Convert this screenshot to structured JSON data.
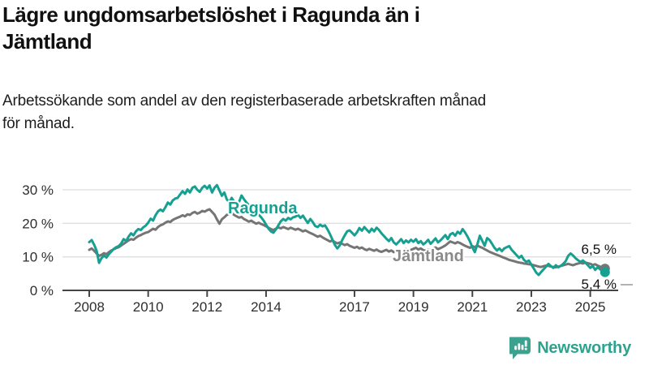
{
  "header": {
    "title_lines": [
      "Lägre ungdomsarbetslöshet i Ragunda än i",
      "Jämtland"
    ],
    "subtitle_lines": [
      "Arbetssökande som andel av den registerbaserade arbetskraften månad",
      "för månad."
    ]
  },
  "footer": {
    "brand": "Newsworthy",
    "logo_icon": "bar-chart-speech-bubble-icon",
    "brand_color": "#2EA28E"
  },
  "chart_data": {
    "type": "line",
    "unit": "%",
    "x_start_year": 2008,
    "x_end_year": 2025.5,
    "points_per_year": 12,
    "ylim": [
      0,
      33
    ],
    "y_ticks": [
      0,
      10,
      20,
      30
    ],
    "y_tick_labels": [
      "0 %",
      "10 %",
      "20 %",
      "30 %"
    ],
    "x_tick_years": [
      2008,
      2010,
      2012,
      2014,
      2017,
      2019,
      2021,
      2023,
      2025
    ],
    "x_tick_labels": [
      "2008",
      "2010",
      "2012",
      "2014",
      "2017",
      "2019",
      "2021",
      "2023",
      "2025"
    ],
    "grid": "horizontal",
    "legend": "inline-labels",
    "series": [
      {
        "name": "Jämtland",
        "color": "#757575",
        "label_color": "#8A8A8A",
        "end_value": 6.5,
        "end_label": "6,5 %",
        "values": [
          12.1,
          12.5,
          11.8,
          11.0,
          10.3,
          10.6,
          11.1,
          10.8,
          11.4,
          11.9,
          12.3,
          12.6,
          12.9,
          13.4,
          13.9,
          14.4,
          14.9,
          15.3,
          15.1,
          15.7,
          16.2,
          16.5,
          16.9,
          17.2,
          17.4,
          17.9,
          18.4,
          18.1,
          18.9,
          19.4,
          19.7,
          20.2,
          20.6,
          20.4,
          21.0,
          21.4,
          21.7,
          22.0,
          22.4,
          22.1,
          22.7,
          22.5,
          23.1,
          23.4,
          22.9,
          23.2,
          23.7,
          23.5,
          23.9,
          24.2,
          23.4,
          22.6,
          21.2,
          19.9,
          21.2,
          21.8,
          22.5,
          22.9,
          23.1,
          22.5,
          22.1,
          21.7,
          21.9,
          21.3,
          20.9,
          20.5,
          20.8,
          20.3,
          19.9,
          20.2,
          19.8,
          19.5,
          19.1,
          18.7,
          18.3,
          18.0,
          18.4,
          18.8,
          18.5,
          18.9,
          18.6,
          18.3,
          18.7,
          18.4,
          18.1,
          18.4,
          18.0,
          17.6,
          17.9,
          17.5,
          17.1,
          16.8,
          16.4,
          16.0,
          16.3,
          15.8,
          15.4,
          15.0,
          14.6,
          14.9,
          14.4,
          14.0,
          14.3,
          13.9,
          13.5,
          13.8,
          13.3,
          13.0,
          12.7,
          13.0,
          12.5,
          12.8,
          12.3,
          12.0,
          12.4,
          12.1,
          11.8,
          12.2,
          11.7,
          11.5,
          11.8,
          12.1,
          11.6,
          11.9,
          11.4,
          11.7,
          12.0,
          11.5,
          11.9,
          12.3,
          11.8,
          12.1,
          12.4,
          12.7,
          12.2,
          12.5,
          12.0,
          11.8,
          12.2,
          11.9,
          12.4,
          12.8,
          12.3,
          12.6,
          13.0,
          13.4,
          14.0,
          14.6,
          14.3,
          14.0,
          14.4,
          14.1,
          13.7,
          13.3,
          13.0,
          12.7,
          13.2,
          12.9,
          13.4,
          13.0,
          12.7,
          12.3,
          11.9,
          11.5,
          11.2,
          10.9,
          10.6,
          10.3,
          10.0,
          9.7,
          9.4,
          9.1,
          8.9,
          8.7,
          8.5,
          8.3,
          8.2,
          8.0,
          7.9,
          7.8,
          7.7,
          7.5,
          7.3,
          7.1,
          7.0,
          7.2,
          7.4,
          7.3,
          7.1,
          7.0,
          6.9,
          7.1,
          7.3,
          7.5,
          7.7,
          7.9,
          7.7,
          7.5,
          7.8,
          8.0,
          8.2,
          8.0,
          8.3,
          8.1,
          7.9,
          7.6,
          7.8,
          7.4,
          7.1,
          6.8,
          6.5
        ]
      },
      {
        "name": "Ragunda",
        "color": "#16A091",
        "label_color": "#16A091",
        "end_value": 5.4,
        "end_label": "5,4 %",
        "values": [
          14.4,
          15.0,
          13.6,
          11.8,
          8.2,
          9.6,
          10.4,
          9.8,
          10.8,
          11.6,
          12.4,
          12.9,
          13.2,
          14.0,
          15.3,
          14.7,
          16.0,
          17.0,
          16.4,
          17.6,
          18.3,
          18.0,
          18.8,
          19.3,
          20.2,
          21.4,
          20.8,
          22.4,
          23.6,
          24.1,
          23.6,
          24.8,
          26.2,
          25.6,
          26.8,
          27.4,
          27.6,
          28.6,
          29.6,
          28.8,
          30.1,
          29.2,
          30.6,
          31.0,
          30.0,
          29.4,
          30.6,
          31.2,
          30.4,
          31.3,
          29.2,
          30.6,
          31.4,
          29.8,
          28.2,
          29.2,
          27.2,
          26.2,
          27.6,
          26.4,
          25.6,
          26.4,
          28.3,
          27.2,
          26.2,
          25.4,
          24.8,
          25.4,
          24.2,
          22.6,
          21.8,
          20.8,
          19.6,
          18.4,
          17.6,
          17.2,
          18.2,
          19.4,
          20.6,
          21.3,
          20.8,
          21.6,
          21.2,
          21.8,
          22.0,
          22.5,
          21.6,
          22.3,
          21.2,
          20.1,
          21.3,
          20.4,
          19.2,
          18.9,
          19.6,
          19.1,
          19.4,
          18.2,
          16.8,
          15.2,
          13.6,
          12.5,
          13.4,
          15.0,
          16.4,
          17.6,
          17.9,
          17.2,
          16.4,
          17.3,
          18.6,
          17.8,
          18.9,
          18.1,
          17.3,
          18.4,
          17.6,
          18.7,
          18.0,
          17.0,
          16.2,
          15.4,
          14.7,
          15.6,
          14.3,
          13.7,
          14.5,
          15.3,
          14.1,
          14.9,
          14.3,
          15.1,
          14.5,
          15.3,
          14.1,
          14.7,
          13.7,
          14.3,
          15.1,
          13.9,
          14.7,
          15.5,
          14.3,
          14.9,
          15.7,
          16.5,
          15.3,
          16.7,
          17.1,
          16.3,
          17.5,
          16.9,
          18.3,
          17.3,
          16.1,
          14.6,
          12.8,
          11.4,
          13.6,
          16.3,
          14.8,
          13.3,
          15.6,
          15.0,
          13.9,
          12.7,
          11.9,
          12.5,
          11.7,
          12.5,
          12.9,
          13.2,
          12.1,
          11.3,
          10.5,
          9.7,
          10.3,
          9.1,
          8.5,
          8.9,
          7.7,
          6.5,
          5.3,
          4.6,
          5.5,
          6.3,
          7.1,
          7.9,
          7.2,
          6.7,
          7.5,
          6.9,
          7.3,
          7.9,
          8.7,
          10.3,
          11.0,
          10.4,
          9.6,
          9.0,
          8.5,
          8.9,
          8.3,
          7.5,
          6.7,
          7.3,
          6.1,
          6.9,
          6.3,
          5.9,
          5.4
        ]
      }
    ]
  }
}
